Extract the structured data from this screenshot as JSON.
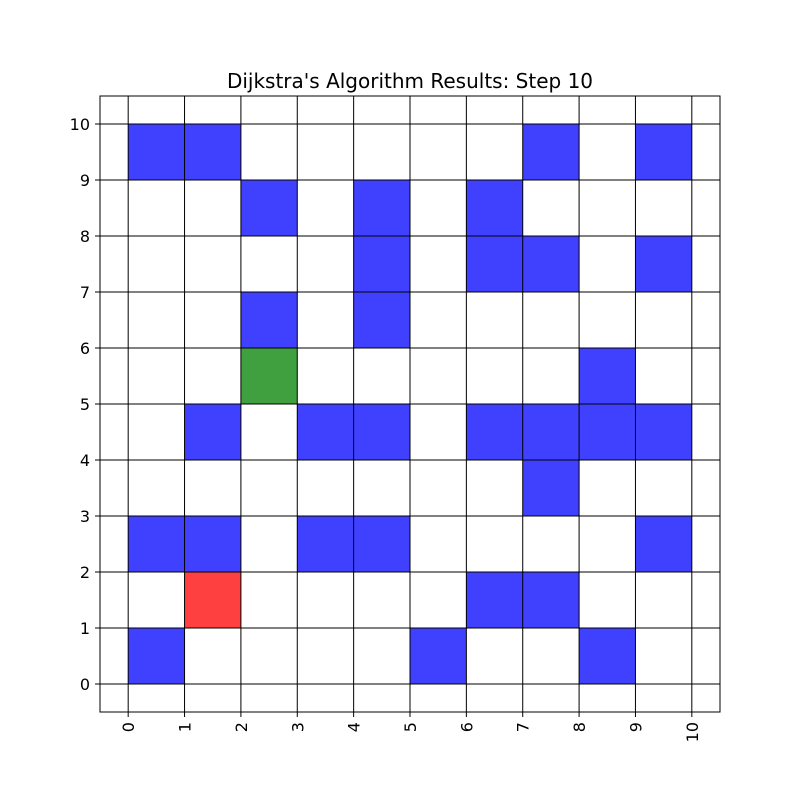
{
  "chart_data": {
    "type": "heatmap",
    "title": "Dijkstra's Algorithm Results: Step 10",
    "xlabel": "",
    "ylabel": "",
    "xlim": [
      -0.5,
      10.5
    ],
    "ylim": [
      -0.5,
      10.5
    ],
    "x_ticks": [
      "0",
      "1",
      "2",
      "3",
      "4",
      "5",
      "6",
      "7",
      "8",
      "9",
      "10"
    ],
    "y_ticks": [
      "0",
      "1",
      "2",
      "3",
      "4",
      "5",
      "6",
      "7",
      "8",
      "9",
      "10"
    ],
    "grid": true,
    "legend": "none",
    "colors": {
      "obstacle": "#4040ff",
      "start": "#40a040",
      "end": "#ff4040",
      "grid_line": "#000000",
      "background": "#ffffff"
    },
    "cells": [
      {
        "x": 0,
        "y": 0,
        "type": "obstacle"
      },
      {
        "x": 5,
        "y": 0,
        "type": "obstacle"
      },
      {
        "x": 8,
        "y": 0,
        "type": "obstacle"
      },
      {
        "x": 1,
        "y": 1,
        "type": "end"
      },
      {
        "x": 6,
        "y": 1,
        "type": "obstacle"
      },
      {
        "x": 7,
        "y": 1,
        "type": "obstacle"
      },
      {
        "x": 0,
        "y": 2,
        "type": "obstacle"
      },
      {
        "x": 1,
        "y": 2,
        "type": "obstacle"
      },
      {
        "x": 3,
        "y": 2,
        "type": "obstacle"
      },
      {
        "x": 4,
        "y": 2,
        "type": "obstacle"
      },
      {
        "x": 9,
        "y": 2,
        "type": "obstacle"
      },
      {
        "x": 7,
        "y": 3,
        "type": "obstacle"
      },
      {
        "x": 1,
        "y": 4,
        "type": "obstacle"
      },
      {
        "x": 3,
        "y": 4,
        "type": "obstacle"
      },
      {
        "x": 4,
        "y": 4,
        "type": "obstacle"
      },
      {
        "x": 6,
        "y": 4,
        "type": "obstacle"
      },
      {
        "x": 7,
        "y": 4,
        "type": "obstacle"
      },
      {
        "x": 8,
        "y": 4,
        "type": "obstacle"
      },
      {
        "x": 9,
        "y": 4,
        "type": "obstacle"
      },
      {
        "x": 2,
        "y": 5,
        "type": "start"
      },
      {
        "x": 8,
        "y": 5,
        "type": "obstacle"
      },
      {
        "x": 2,
        "y": 6,
        "type": "obstacle"
      },
      {
        "x": 4,
        "y": 6,
        "type": "obstacle"
      },
      {
        "x": 4,
        "y": 7,
        "type": "obstacle"
      },
      {
        "x": 6,
        "y": 7,
        "type": "obstacle"
      },
      {
        "x": 7,
        "y": 7,
        "type": "obstacle"
      },
      {
        "x": 9,
        "y": 7,
        "type": "obstacle"
      },
      {
        "x": 2,
        "y": 8,
        "type": "obstacle"
      },
      {
        "x": 4,
        "y": 8,
        "type": "obstacle"
      },
      {
        "x": 6,
        "y": 8,
        "type": "obstacle"
      },
      {
        "x": 0,
        "y": 9,
        "type": "obstacle"
      },
      {
        "x": 1,
        "y": 9,
        "type": "obstacle"
      },
      {
        "x": 7,
        "y": 9,
        "type": "obstacle"
      },
      {
        "x": 9,
        "y": 9,
        "type": "obstacle"
      }
    ]
  }
}
